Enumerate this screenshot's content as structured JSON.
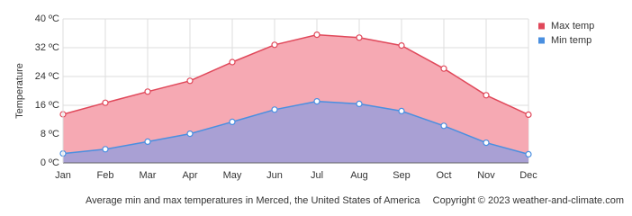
{
  "chart_data": {
    "type": "area",
    "y_label": "Temperature",
    "caption": "Average min and max temperatures in Merced, the United States of America",
    "copyright": "Copyright © 2023  weather-and-climate.com",
    "categories": [
      "Jan",
      "Feb",
      "Mar",
      "Apr",
      "May",
      "Jun",
      "Jul",
      "Aug",
      "Sep",
      "Oct",
      "Nov",
      "Dec"
    ],
    "series": [
      {
        "name": "Max temp",
        "color": "#e0485a",
        "fill": "#f6a9b3",
        "values": [
          13.5,
          16.7,
          19.8,
          22.8,
          28.0,
          32.8,
          35.6,
          34.8,
          32.6,
          26.2,
          18.8,
          13.4
        ]
      },
      {
        "name": "Min temp",
        "color": "#4a8fe0",
        "fill": "#a9a0d4",
        "values": [
          2.6,
          3.8,
          5.9,
          8.1,
          11.4,
          14.8,
          17.1,
          16.4,
          14.4,
          10.3,
          5.6,
          2.4
        ]
      }
    ],
    "ylim": [
      0,
      40
    ],
    "yticks": [
      {
        "value": 0,
        "label": "0 ºC"
      },
      {
        "value": 8,
        "label": "8 ºC"
      },
      {
        "value": 16,
        "label": "16 ºC"
      },
      {
        "value": 24,
        "label": "24 ºC"
      },
      {
        "value": 32,
        "label": "32 ºC"
      },
      {
        "value": 40,
        "label": "40 ºC"
      }
    ],
    "grid": true,
    "legend": "top-right"
  }
}
